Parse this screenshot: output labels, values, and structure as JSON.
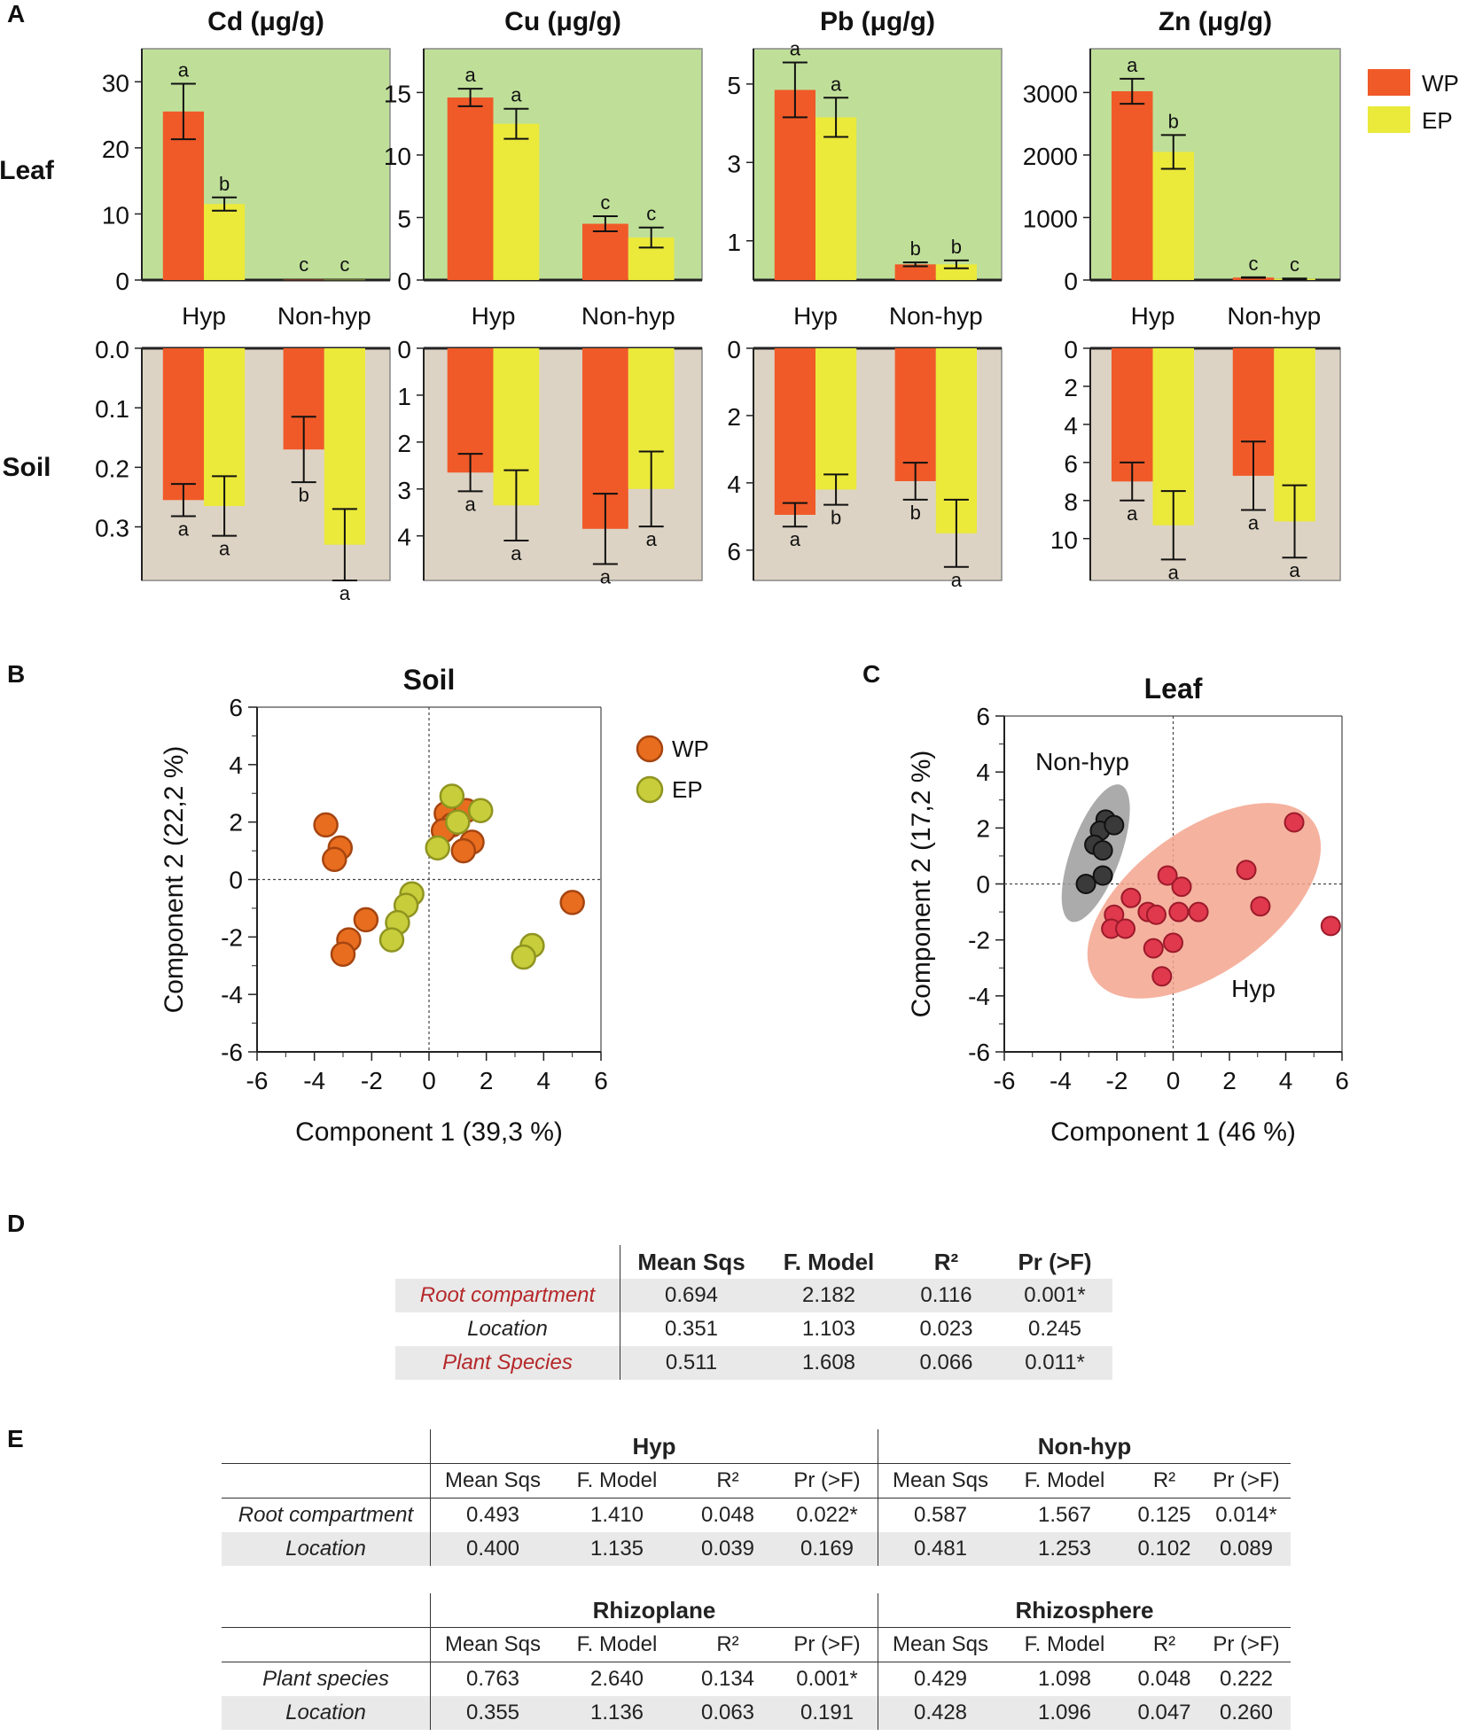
{
  "panel_labels": {
    "A": "A",
    "B": "B",
    "C": "C",
    "D": "D",
    "E": "E"
  },
  "colors": {
    "wp": "#f05a28",
    "ep": "#ebe93a",
    "leaf_bg": "#bfdf99",
    "soil_bg": "#ddd3c4",
    "wp_dot": "#e86d1f",
    "ep_dot": "#c8cd3b",
    "nonhyp_dot": "#3a3a3a",
    "hyp_dot": "#e0384d",
    "nonhyp_ellipse": "#9c9c9c",
    "hyp_ellipse": "#f3a48e"
  },
  "row_labels": {
    "leaf": "Leaf",
    "soil": "Soil"
  },
  "legend": {
    "wp": "WP",
    "ep": "EP"
  },
  "chart_data": [
    {
      "type": "bar",
      "id": "leaf-cd",
      "title": "Cd (μg/g)",
      "categories": [
        "Hyp",
        "Non-hyp"
      ],
      "ylim": [
        0,
        35
      ],
      "yticks": [
        0,
        10,
        20,
        30
      ],
      "ytick_labels": [
        "0",
        "10",
        "20",
        "30"
      ],
      "series": [
        {
          "name": "WP",
          "values": [
            25.5,
            0.05
          ],
          "err": [
            4.2,
            0
          ],
          "labels": [
            "a",
            "c"
          ]
        },
        {
          "name": "EP",
          "values": [
            11.5,
            0.05
          ],
          "err": [
            1.0,
            0
          ],
          "labels": [
            "b",
            "c"
          ]
        }
      ]
    },
    {
      "type": "bar",
      "id": "leaf-cu",
      "title": "Cu (μg/g)",
      "categories": [
        "Hyp",
        "Non-hyp"
      ],
      "ylim": [
        0,
        18.5
      ],
      "yticks": [
        0,
        5,
        10,
        15
      ],
      "ytick_labels": [
        "0",
        "5",
        "10",
        "15"
      ],
      "series": [
        {
          "name": "WP",
          "values": [
            14.6,
            4.5
          ],
          "err": [
            0.7,
            0.6
          ],
          "labels": [
            "a",
            "c"
          ]
        },
        {
          "name": "EP",
          "values": [
            12.5,
            3.4
          ],
          "err": [
            1.2,
            0.8
          ],
          "labels": [
            "a",
            "c"
          ]
        }
      ]
    },
    {
      "type": "bar",
      "id": "leaf-pb",
      "title": "Pb (μg/g)",
      "categories": [
        "Hyp",
        "Non-hyp"
      ],
      "ylim": [
        0,
        5.9
      ],
      "yticks": [
        1,
        3,
        5
      ],
      "ytick_labels": [
        "1",
        "3",
        "5"
      ],
      "series": [
        {
          "name": "WP",
          "values": [
            4.85,
            0.4
          ],
          "err": [
            0.7,
            0.05
          ],
          "labels": [
            "a",
            "b"
          ]
        },
        {
          "name": "EP",
          "values": [
            4.15,
            0.4
          ],
          "err": [
            0.5,
            0.1
          ],
          "labels": [
            "a",
            "b"
          ]
        }
      ]
    },
    {
      "type": "bar",
      "id": "leaf-zn",
      "title": "Zn (μg/g)",
      "categories": [
        "Hyp",
        "Non-hyp"
      ],
      "ylim": [
        0,
        3700
      ],
      "yticks": [
        0,
        1000,
        2000,
        3000
      ],
      "ytick_labels": [
        "0",
        "1000",
        "2000",
        "3000"
      ],
      "series": [
        {
          "name": "WP",
          "values": [
            3020,
            40
          ],
          "err": [
            200,
            5
          ],
          "labels": [
            "a",
            "c"
          ]
        },
        {
          "name": "EP",
          "values": [
            2050,
            20
          ],
          "err": [
            270,
            5
          ],
          "labels": [
            "b",
            "c"
          ]
        }
      ]
    },
    {
      "type": "bar",
      "id": "soil-cd",
      "orientation": "down",
      "categories": [
        "Hyp",
        "Non-hyp"
      ],
      "ylim": [
        0,
        0.39
      ],
      "yticks": [
        0,
        0.1,
        0.2,
        0.3
      ],
      "ytick_labels": [
        "0.0",
        "0.1",
        "0.2",
        "0.3"
      ],
      "series": [
        {
          "name": "WP",
          "values": [
            0.255,
            0.17
          ],
          "err": [
            0.027,
            0.055
          ],
          "labels": [
            "a",
            "b"
          ]
        },
        {
          "name": "EP",
          "values": [
            0.265,
            0.33
          ],
          "err": [
            0.05,
            0.06
          ],
          "labels": [
            "a",
            "a"
          ]
        }
      ]
    },
    {
      "type": "bar",
      "id": "soil-cu",
      "orientation": "down",
      "categories": [
        "Hyp",
        "Non-hyp"
      ],
      "ylim": [
        0,
        4.95
      ],
      "yticks": [
        0,
        1,
        2,
        3,
        4
      ],
      "ytick_labels": [
        "0",
        "1",
        "2",
        "3",
        "4"
      ],
      "series": [
        {
          "name": "WP",
          "values": [
            2.65,
            3.85
          ],
          "err": [
            0.4,
            0.75
          ],
          "labels": [
            "a",
            "a"
          ]
        },
        {
          "name": "EP",
          "values": [
            3.35,
            3.0
          ],
          "err": [
            0.75,
            0.8
          ],
          "labels": [
            "a",
            "a"
          ]
        }
      ]
    },
    {
      "type": "bar",
      "id": "soil-pb",
      "orientation": "down",
      "categories": [
        "Hyp",
        "Non-hyp"
      ],
      "ylim": [
        0,
        6.9
      ],
      "yticks": [
        0,
        2,
        4,
        6
      ],
      "ytick_labels": [
        "0",
        "2",
        "4",
        "6"
      ],
      "series": [
        {
          "name": "WP",
          "values": [
            4.95,
            3.95
          ],
          "err": [
            0.35,
            0.55
          ],
          "labels": [
            "a",
            "b"
          ]
        },
        {
          "name": "EP",
          "values": [
            4.2,
            5.5
          ],
          "err": [
            0.45,
            1.0
          ],
          "labels": [
            "b",
            "a"
          ]
        }
      ]
    },
    {
      "type": "bar",
      "id": "soil-zn",
      "orientation": "down",
      "categories": [
        "Hyp",
        "Non-hyp"
      ],
      "ylim": [
        0,
        12.2
      ],
      "yticks": [
        0,
        2,
        4,
        6,
        8,
        10
      ],
      "ytick_labels": [
        "0",
        "2",
        "4",
        "6",
        "8",
        "10"
      ],
      "series": [
        {
          "name": "WP",
          "values": [
            7.0,
            6.7
          ],
          "err": [
            1.0,
            1.8
          ],
          "labels": [
            "a",
            "a"
          ]
        },
        {
          "name": "EP",
          "values": [
            9.3,
            9.1
          ],
          "err": [
            1.8,
            1.9
          ],
          "labels": [
            "a",
            "a"
          ]
        }
      ]
    },
    {
      "type": "scatter",
      "id": "pca-soil",
      "title": "Soil",
      "xlabel": "Component 1  (39,3 %)",
      "ylabel": "Component 2  (22,2 %)",
      "xlim": [
        -6,
        6
      ],
      "ylim": [
        -6,
        6
      ],
      "ticks": [
        -6,
        -4,
        -2,
        0,
        2,
        4,
        6
      ],
      "tick_labels": [
        "-6",
        "-4",
        "-2",
        "0",
        "2",
        "4",
        "6"
      ],
      "legend": [
        "WP",
        "EP"
      ],
      "series": [
        {
          "name": "WP",
          "points": [
            [
              -3.6,
              1.9
            ],
            [
              -3.1,
              1.1
            ],
            [
              -3.3,
              0.7
            ],
            [
              -2.2,
              -1.4
            ],
            [
              -2.8,
              -2.1
            ],
            [
              -3.0,
              -2.6
            ],
            [
              0.6,
              2.3
            ],
            [
              0.8,
              1.9
            ],
            [
              1.3,
              2.4
            ],
            [
              0.5,
              1.7
            ],
            [
              1.5,
              1.3
            ],
            [
              1.2,
              1.0
            ],
            [
              5.0,
              -0.8
            ]
          ]
        },
        {
          "name": "EP",
          "points": [
            [
              0.8,
              2.9
            ],
            [
              1.8,
              2.4
            ],
            [
              1.0,
              2.0
            ],
            [
              0.3,
              1.1
            ],
            [
              -0.6,
              -0.5
            ],
            [
              -0.8,
              -0.9
            ],
            [
              -1.1,
              -1.5
            ],
            [
              -1.3,
              -2.1
            ],
            [
              3.6,
              -2.3
            ],
            [
              3.3,
              -2.7
            ]
          ]
        }
      ]
    },
    {
      "type": "scatter",
      "id": "pca-leaf",
      "title": "Leaf",
      "xlabel": "Component 1  (46 %)",
      "ylabel": "Component 2  (17,2 %)",
      "xlim": [
        -6,
        6
      ],
      "ylim": [
        -6,
        6
      ],
      "ticks": [
        -6,
        -4,
        -2,
        0,
        2,
        4,
        6
      ],
      "tick_labels": [
        "-6",
        "-4",
        "-2",
        "0",
        "2",
        "4",
        "6"
      ],
      "groups": [
        "Non-hyp",
        "Hyp"
      ],
      "series": [
        {
          "name": "Non-hyp",
          "points": [
            [
              -2.4,
              2.3
            ],
            [
              -2.6,
              1.9
            ],
            [
              -2.1,
              2.1
            ],
            [
              -2.8,
              1.4
            ],
            [
              -2.5,
              1.2
            ],
            [
              -2.5,
              0.3
            ],
            [
              -3.1,
              0.0
            ]
          ]
        },
        {
          "name": "Hyp",
          "points": [
            [
              4.3,
              2.2
            ],
            [
              2.6,
              0.5
            ],
            [
              -0.2,
              0.3
            ],
            [
              0.3,
              -0.1
            ],
            [
              -1.5,
              -0.5
            ],
            [
              -2.1,
              -1.1
            ],
            [
              -0.9,
              -1.0
            ],
            [
              -0.6,
              -1.1
            ],
            [
              0.2,
              -1.0
            ],
            [
              0.9,
              -1.0
            ],
            [
              3.1,
              -0.8
            ],
            [
              5.6,
              -1.5
            ],
            [
              -2.2,
              -1.6
            ],
            [
              -1.7,
              -1.6
            ],
            [
              -0.7,
              -2.3
            ],
            [
              0.0,
              -2.1
            ],
            [
              -0.4,
              -3.3
            ]
          ]
        }
      ]
    }
  ],
  "table_d": {
    "headers": [
      "Mean Sqs",
      "F. Model",
      "R²",
      "Pr (>F)"
    ],
    "rows": [
      {
        "label": "Root compartment",
        "values": [
          "0.694",
          "2.182",
          "0.116",
          "0.001*"
        ]
      },
      {
        "label": "Location",
        "values": [
          "0.351",
          "1.103",
          "0.023",
          "0.245"
        ]
      },
      {
        "label": "Plant Species",
        "values": [
          "0.511",
          "1.608",
          "0.066",
          "0.011*"
        ]
      }
    ]
  },
  "table_e1": {
    "groups": [
      "Hyp",
      "Non-hyp"
    ],
    "headers": [
      "Mean Sqs",
      "F. Model",
      "R²",
      "Pr (>F)",
      "Mean Sqs",
      "F. Model",
      "R²",
      "Pr (>F)"
    ],
    "rows": [
      {
        "label": "Root compartment",
        "values": [
          "0.493",
          "1.410",
          "0.048",
          "0.022*",
          "0.587",
          "1.567",
          "0.125",
          "0.014*"
        ]
      },
      {
        "label": "Location",
        "values": [
          "0.400",
          "1.135",
          "0.039",
          "0.169",
          "0.481",
          "1.253",
          "0.102",
          "0.089"
        ]
      }
    ]
  },
  "table_e2": {
    "groups": [
      "Rhizoplane",
      "Rhizosphere"
    ],
    "headers": [
      "Mean Sqs",
      "F. Model",
      "R²",
      "Pr (>F)",
      "Mean Sqs",
      "F. Model",
      "R²",
      "Pr (>F)"
    ],
    "rows": [
      {
        "label": "Plant species",
        "values": [
          "0.763",
          "2.640",
          "0.134",
          "0.001*",
          "0.429",
          "1.098",
          "0.048",
          "0.222"
        ]
      },
      {
        "label": "Location",
        "values": [
          "0.355",
          "1.136",
          "0.063",
          "0.191",
          "0.428",
          "1.096",
          "0.047",
          "0.260"
        ]
      }
    ]
  }
}
